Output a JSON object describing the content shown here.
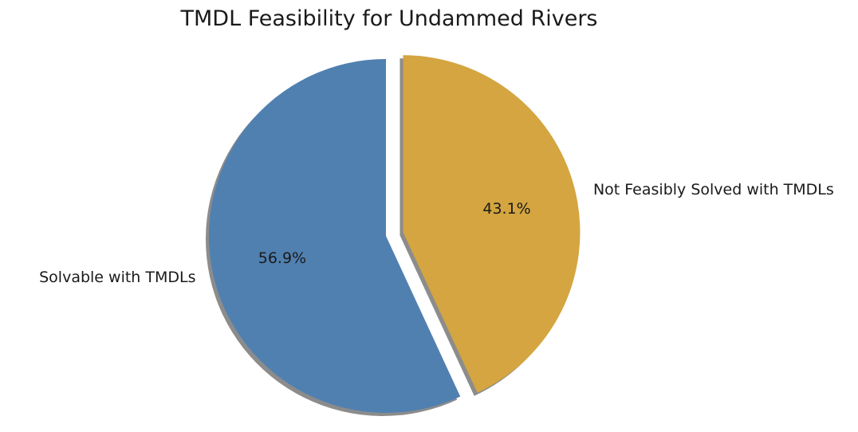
{
  "chart_data": {
    "type": "pie",
    "title": "TMDL Feasibility for Undammed Rivers",
    "slices": [
      {
        "label": "Solvable with TMDLs",
        "value": 56.9,
        "pct_label": "56.9%",
        "color": "#5080b0",
        "exploded": false
      },
      {
        "label": "Not Feasibly Solved with TMDLs",
        "value": 43.1,
        "pct_label": "43.1%",
        "color": "#d4a540",
        "exploded": true
      }
    ],
    "start_angle_deg": 90,
    "direction": "counterclockwise",
    "shadow": true
  }
}
